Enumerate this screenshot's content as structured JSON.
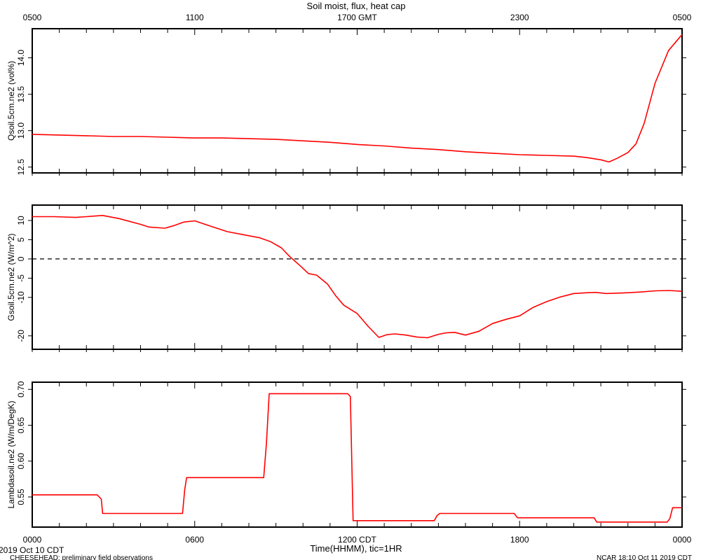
{
  "title": "Soil moist, flux, heat cap",
  "top_axis_ticks": [
    "0500",
    "1100",
    "1700 GMT",
    "2300",
    "0500"
  ],
  "bottom_axis_ticks": [
    "0000",
    "0600",
    "1200 CDT",
    "1800",
    "0000"
  ],
  "xlabel": "Time(HHMM), tic=1HR",
  "footer": {
    "date": "2019 Oct 10 CDT",
    "project": "CHEESEHEAD: preliminary field observations",
    "stamp": "NCAR 18:10 Oct 11 2019 CDT"
  },
  "colors": {
    "series": "#ff0000",
    "axis": "#000000",
    "zero_line": "#000000"
  },
  "chart_data": [
    {
      "type": "line",
      "ylabel": "Qsoil.5cm.ne2 (vol%)",
      "ylim": [
        12.42,
        14.4
      ],
      "yticks": [
        12.5,
        13.0,
        13.5,
        14.0
      ],
      "ytick_labels": [
        "12.5",
        "13.0",
        "13.5",
        "14.0"
      ],
      "xlim": [
        0,
        24
      ],
      "series": [
        {
          "x": [
            0,
            1,
            2,
            3,
            4,
            5,
            6,
            7,
            8,
            9,
            10,
            11,
            12,
            13,
            14,
            15,
            16,
            17,
            18,
            19,
            20,
            20.5,
            21,
            21.3,
            21.6,
            22.0,
            22.3,
            22.6,
            23.0,
            23.5,
            24
          ],
          "y": [
            12.95,
            12.94,
            12.93,
            12.92,
            12.92,
            12.91,
            12.9,
            12.9,
            12.89,
            12.88,
            12.86,
            12.84,
            12.81,
            12.79,
            12.76,
            12.74,
            12.71,
            12.69,
            12.67,
            12.66,
            12.65,
            12.63,
            12.6,
            12.57,
            12.62,
            12.7,
            12.82,
            13.1,
            13.65,
            14.1,
            14.32
          ]
        }
      ]
    },
    {
      "type": "line",
      "ylabel": "Gsoil.5cm.ne2 (W/m^2)",
      "ylim": [
        -23.5,
        14
      ],
      "yticks": [
        -20,
        -10,
        -5,
        0,
        5,
        10
      ],
      "ytick_labels": [
        "-20",
        "-10",
        "-5",
        "0",
        "5",
        "10"
      ],
      "xlim": [
        0,
        24
      ],
      "zero_line": true,
      "series": [
        {
          "x": [
            0,
            0.8,
            1.6,
            2.0,
            2.6,
            3.2,
            4.0,
            4.3,
            4.9,
            5.2,
            5.6,
            6.0,
            6.6,
            7.2,
            7.8,
            8.4,
            8.8,
            9.2,
            9.5,
            9.9,
            10.2,
            10.5,
            10.9,
            11.2,
            11.5,
            12.0,
            12.4,
            12.8,
            13.1,
            13.4,
            13.8,
            14.2,
            14.6,
            15.0,
            15.3,
            15.6,
            16.0,
            16.5,
            17.0,
            17.5,
            18.0,
            18.5,
            19.0,
            19.5,
            20.0,
            20.5,
            20.8,
            21.2,
            21.6,
            22.0,
            22.5,
            23.0,
            23.5,
            24.0
          ],
          "y": [
            11.0,
            11.0,
            10.8,
            11.0,
            11.3,
            10.5,
            9.0,
            8.3,
            8.0,
            8.6,
            9.6,
            9.9,
            8.5,
            7.1,
            6.3,
            5.5,
            4.5,
            2.9,
            0.7,
            -1.8,
            -3.8,
            -4.2,
            -6.5,
            -9.5,
            -12.0,
            -14.2,
            -17.5,
            -20.4,
            -19.7,
            -19.5,
            -19.8,
            -20.3,
            -20.5,
            -19.6,
            -19.2,
            -19.1,
            -19.8,
            -18.8,
            -16.8,
            -15.7,
            -14.8,
            -12.6,
            -11.1,
            -9.9,
            -9.0,
            -8.8,
            -8.7,
            -9.0,
            -8.9,
            -8.8,
            -8.6,
            -8.3,
            -8.2,
            -8.4
          ]
        }
      ]
    },
    {
      "type": "line",
      "ylabel": "Lambdasoil.ne2 (W/m/DegK)",
      "ylim": [
        0.508,
        0.71
      ],
      "yticks": [
        0.55,
        0.6,
        0.65,
        0.7
      ],
      "ytick_labels": [
        "0.55",
        "0.60",
        "0.65",
        "0.70"
      ],
      "xlim": [
        0,
        24
      ],
      "series": [
        {
          "x": [
            0,
            2.4,
            2.55,
            2.6,
            5.55,
            5.63,
            5.7,
            8.55,
            8.65,
            8.75,
            11.65,
            11.75,
            11.85,
            14.85,
            14.95,
            15.05,
            17.8,
            17.92,
            18.0,
            20.75,
            20.85,
            20.9,
            23.45,
            23.55,
            23.65,
            24.0
          ],
          "y": [
            0.553,
            0.553,
            0.547,
            0.527,
            0.527,
            0.56,
            0.577,
            0.577,
            0.625,
            0.694,
            0.694,
            0.69,
            0.517,
            0.517,
            0.524,
            0.527,
            0.527,
            0.521,
            0.521,
            0.521,
            0.515,
            0.515,
            0.515,
            0.52,
            0.535,
            0.535
          ]
        }
      ]
    }
  ]
}
